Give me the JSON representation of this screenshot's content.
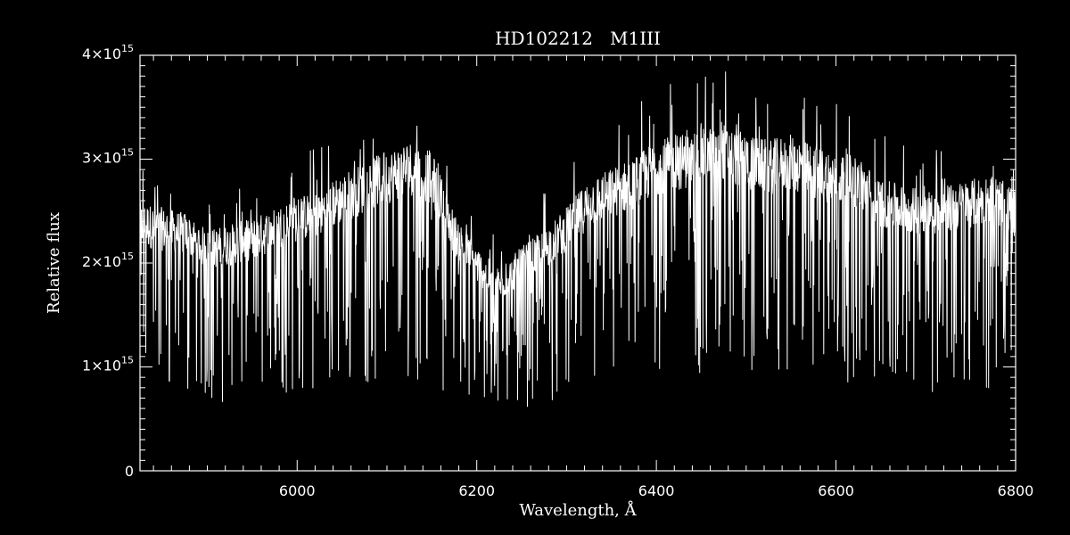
{
  "chart_data": {
    "type": "line",
    "title": "HD102212   M1III",
    "xlabel": "Wavelength, Å",
    "ylabel": "Relative flux",
    "xlim": [
      5825,
      6800
    ],
    "ylim": [
      0,
      4000000000000000.0
    ],
    "x_ticks": [
      {
        "value": 6000,
        "label": "6000"
      },
      {
        "value": 6200,
        "label": "6200"
      },
      {
        "value": 6400,
        "label": "6400"
      },
      {
        "value": 6600,
        "label": "6600"
      },
      {
        "value": 6800,
        "label": "6800"
      }
    ],
    "y_ticks": [
      {
        "value": 0,
        "label": "0",
        "mantissa": "",
        "exponent": ""
      },
      {
        "value": 1000000000000000.0,
        "label": "",
        "mantissa": "1×10",
        "exponent": "15"
      },
      {
        "value": 2000000000000000.0,
        "label": "",
        "mantissa": "2×10",
        "exponent": "15"
      },
      {
        "value": 3000000000000000.0,
        "label": "",
        "mantissa": "3×10",
        "exponent": "15"
      },
      {
        "value": 4000000000000000.0,
        "label": "",
        "mantissa": "4×10",
        "exponent": "15"
      }
    ],
    "grid": false,
    "colors": {
      "background": "#000000",
      "foreground": "#ffffff"
    },
    "series": [
      {
        "x": [
          5825,
          5850,
          5875,
          5900,
          5925,
          5950,
          5975,
          6000,
          6025,
          6050,
          6075,
          6100,
          6125,
          6150,
          6175,
          6200,
          6225,
          6250,
          6275,
          6300,
          6325,
          6350,
          6375,
          6400,
          6425,
          6450,
          6475,
          6500,
          6525,
          6550,
          6575,
          6600,
          6625,
          6650,
          6675,
          6700,
          6725,
          6750,
          6775,
          6800
        ],
        "y": [
          2400000000000000.0,
          2350000000000000.0,
          2300000000000000.0,
          2150000000000000.0,
          2200000000000000.0,
          2250000000000000.0,
          2350000000000000.0,
          2450000000000000.0,
          2500000000000000.0,
          2650000000000000.0,
          2750000000000000.0,
          2850000000000000.0,
          2950000000000000.0,
          2850000000000000.0,
          2300000000000000.0,
          2000000000000000.0,
          1800000000000000.0,
          2000000000000000.0,
          2150000000000000.0,
          2350000000000000.0,
          2600000000000000.0,
          2700000000000000.0,
          2800000000000000.0,
          2950000000000000.0,
          3000000000000000.0,
          3050000000000000.0,
          3100000000000000.0,
          3000000000000000.0,
          2950000000000000.0,
          3000000000000000.0,
          2900000000000000.0,
          2850000000000000.0,
          2800000000000000.0,
          2600000000000000.0,
          2550000000000000.0,
          2500000000000000.0,
          2550000000000000.0,
          2600000000000000.0,
          2650000000000000.0,
          2500000000000000.0
        ]
      }
    ]
  }
}
